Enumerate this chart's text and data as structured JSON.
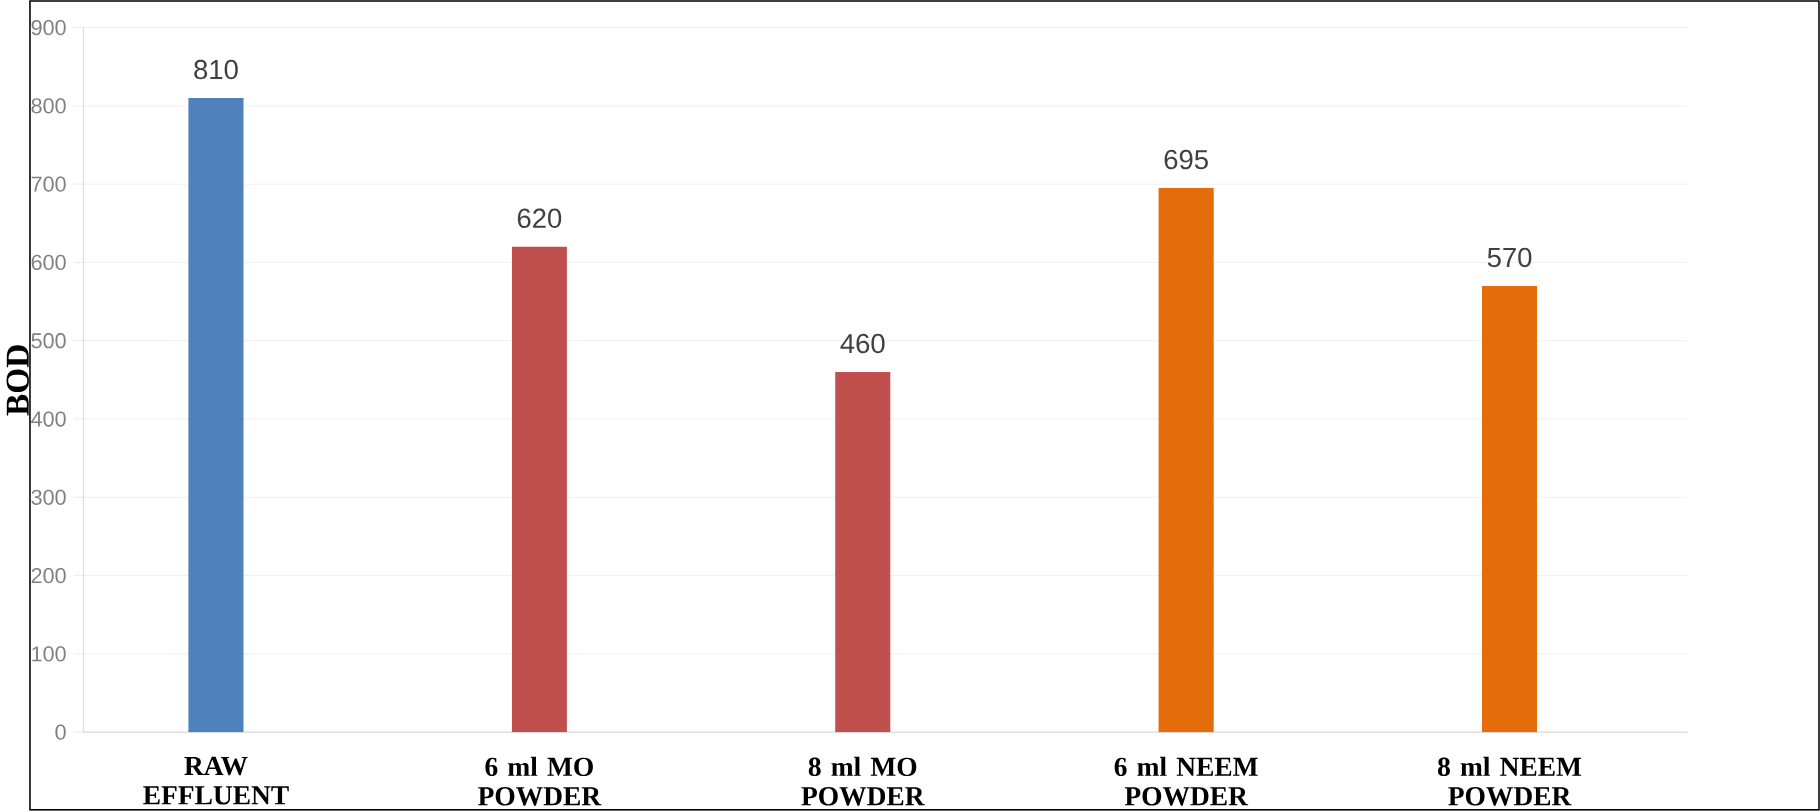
{
  "chart_data": {
    "type": "bar",
    "ylabel": "BOD",
    "categories": [
      "RAW EFFLUENT",
      "6 ml MO POWDER",
      "8 ml MO POWDER",
      "6 ml NEEM POWDER",
      "8 ml NEEM POWDER"
    ],
    "values": [
      810,
      620,
      460,
      695,
      570
    ],
    "colors": [
      "#4f81bd",
      "#c0504d",
      "#c0504d",
      "#e46c0a",
      "#e46c0a"
    ],
    "ylim": [
      0,
      900
    ],
    "yticks": [
      0,
      100,
      200,
      300,
      400,
      500,
      600,
      700,
      800,
      900
    ],
    "grid": "y",
    "data_labels": true
  }
}
